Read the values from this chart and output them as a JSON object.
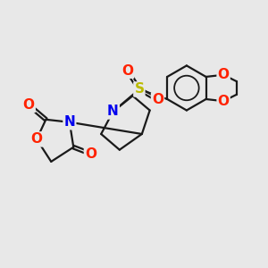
{
  "bg_color": "#e8e8e8",
  "bond_color": "#1a1a1a",
  "bond_width": 1.6,
  "dbo": 0.06,
  "atom_colors": {
    "O": "#ff2200",
    "N": "#0000ee",
    "S": "#bbbb00",
    "C": "#1a1a1a"
  },
  "fs": 11
}
